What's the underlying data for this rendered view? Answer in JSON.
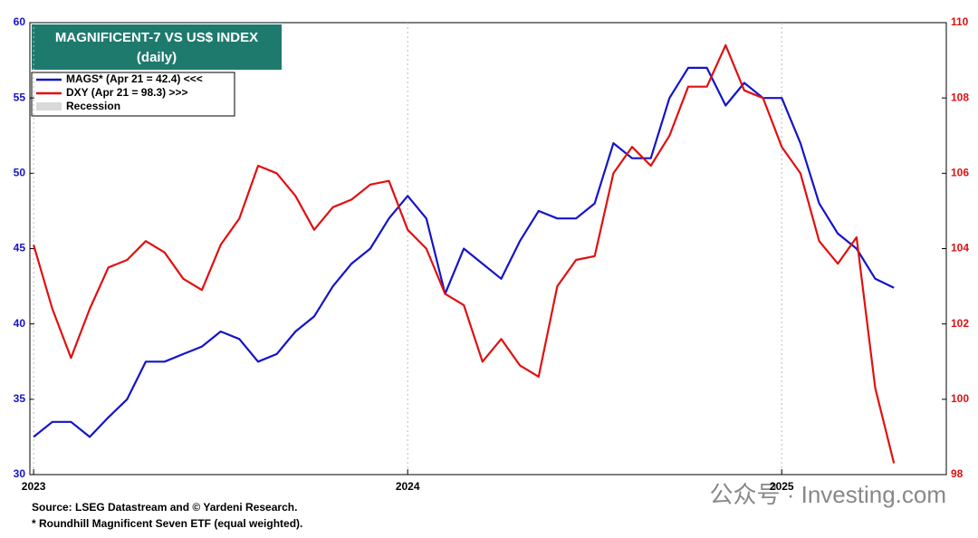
{
  "chart_data": {
    "type": "line",
    "title": "MAGNIFICENT-7 VS US$ INDEX",
    "subtitle": "(daily)",
    "x": [
      2023.0,
      2023.05,
      2023.1,
      2023.15,
      2023.2,
      2023.25,
      2023.3,
      2023.35,
      2023.4,
      2023.45,
      2023.5,
      2023.55,
      2023.6,
      2023.65,
      2023.7,
      2023.75,
      2023.8,
      2023.85,
      2023.9,
      2023.95,
      2024.0,
      2024.05,
      2024.1,
      2024.15,
      2024.2,
      2024.25,
      2024.3,
      2024.35,
      2024.4,
      2024.45,
      2024.5,
      2024.55,
      2024.6,
      2024.65,
      2024.7,
      2024.75,
      2024.8,
      2024.85,
      2024.9,
      2024.95,
      2025.0,
      2025.05,
      2025.1,
      2025.15,
      2025.2,
      2025.25,
      2025.3
    ],
    "series": [
      {
        "name": "MAGS* (Apr 21 = 42.4) <<<",
        "color": "#1414c8",
        "axis": "y",
        "values": [
          32.5,
          33.5,
          33.5,
          32.5,
          33.8,
          35,
          37.5,
          37.5,
          38,
          38.5,
          39.5,
          39,
          37.5,
          38,
          39.5,
          40.5,
          42.5,
          44,
          45,
          47,
          48.5,
          47,
          42,
          45,
          44,
          43,
          45.5,
          47.5,
          47,
          47,
          48,
          52,
          51,
          51,
          55,
          57,
          57,
          54.5,
          56,
          55,
          55,
          52,
          48,
          46,
          45,
          43,
          42.4
        ]
      },
      {
        "name": "DXY (Apr 21 = 98.3) >>>",
        "color": "#e01010",
        "axis": "y2",
        "values": [
          104.1,
          102.4,
          101.1,
          102.4,
          103.5,
          103.7,
          104.2,
          103.9,
          103.2,
          102.9,
          104.1,
          104.8,
          106.2,
          106,
          105.4,
          104.5,
          105.1,
          105.3,
          105.7,
          105.8,
          104.5,
          104,
          102.8,
          102.5,
          101,
          101.6,
          100.9,
          100.6,
          103,
          103.7,
          103.8,
          106,
          106.7,
          106.2,
          107,
          108.3,
          108.3,
          109.4,
          108.2,
          108,
          106.7,
          106,
          104.2,
          103.6,
          104.3,
          100.3,
          98.3
        ]
      }
    ],
    "recession": {
      "name": "Recession",
      "color": "#d9d9d9"
    },
    "xlim": [
      2022.99,
      2025.44
    ],
    "xticks": [
      2023,
      2024,
      2025
    ],
    "ylim": [
      30,
      60
    ],
    "yticks": [
      30,
      35,
      40,
      45,
      50,
      55,
      60
    ],
    "y2lim": [
      98,
      110
    ],
    "y2ticks": [
      98,
      100,
      102,
      104,
      106,
      108,
      110
    ],
    "grid": true,
    "notes": [
      "Source: LSEG Datastream and © Yardeni Research.",
      "* Roundhill Magnificent Seven ETF (equal weighted)."
    ],
    "watermark": "公众号 · Investing.com"
  }
}
